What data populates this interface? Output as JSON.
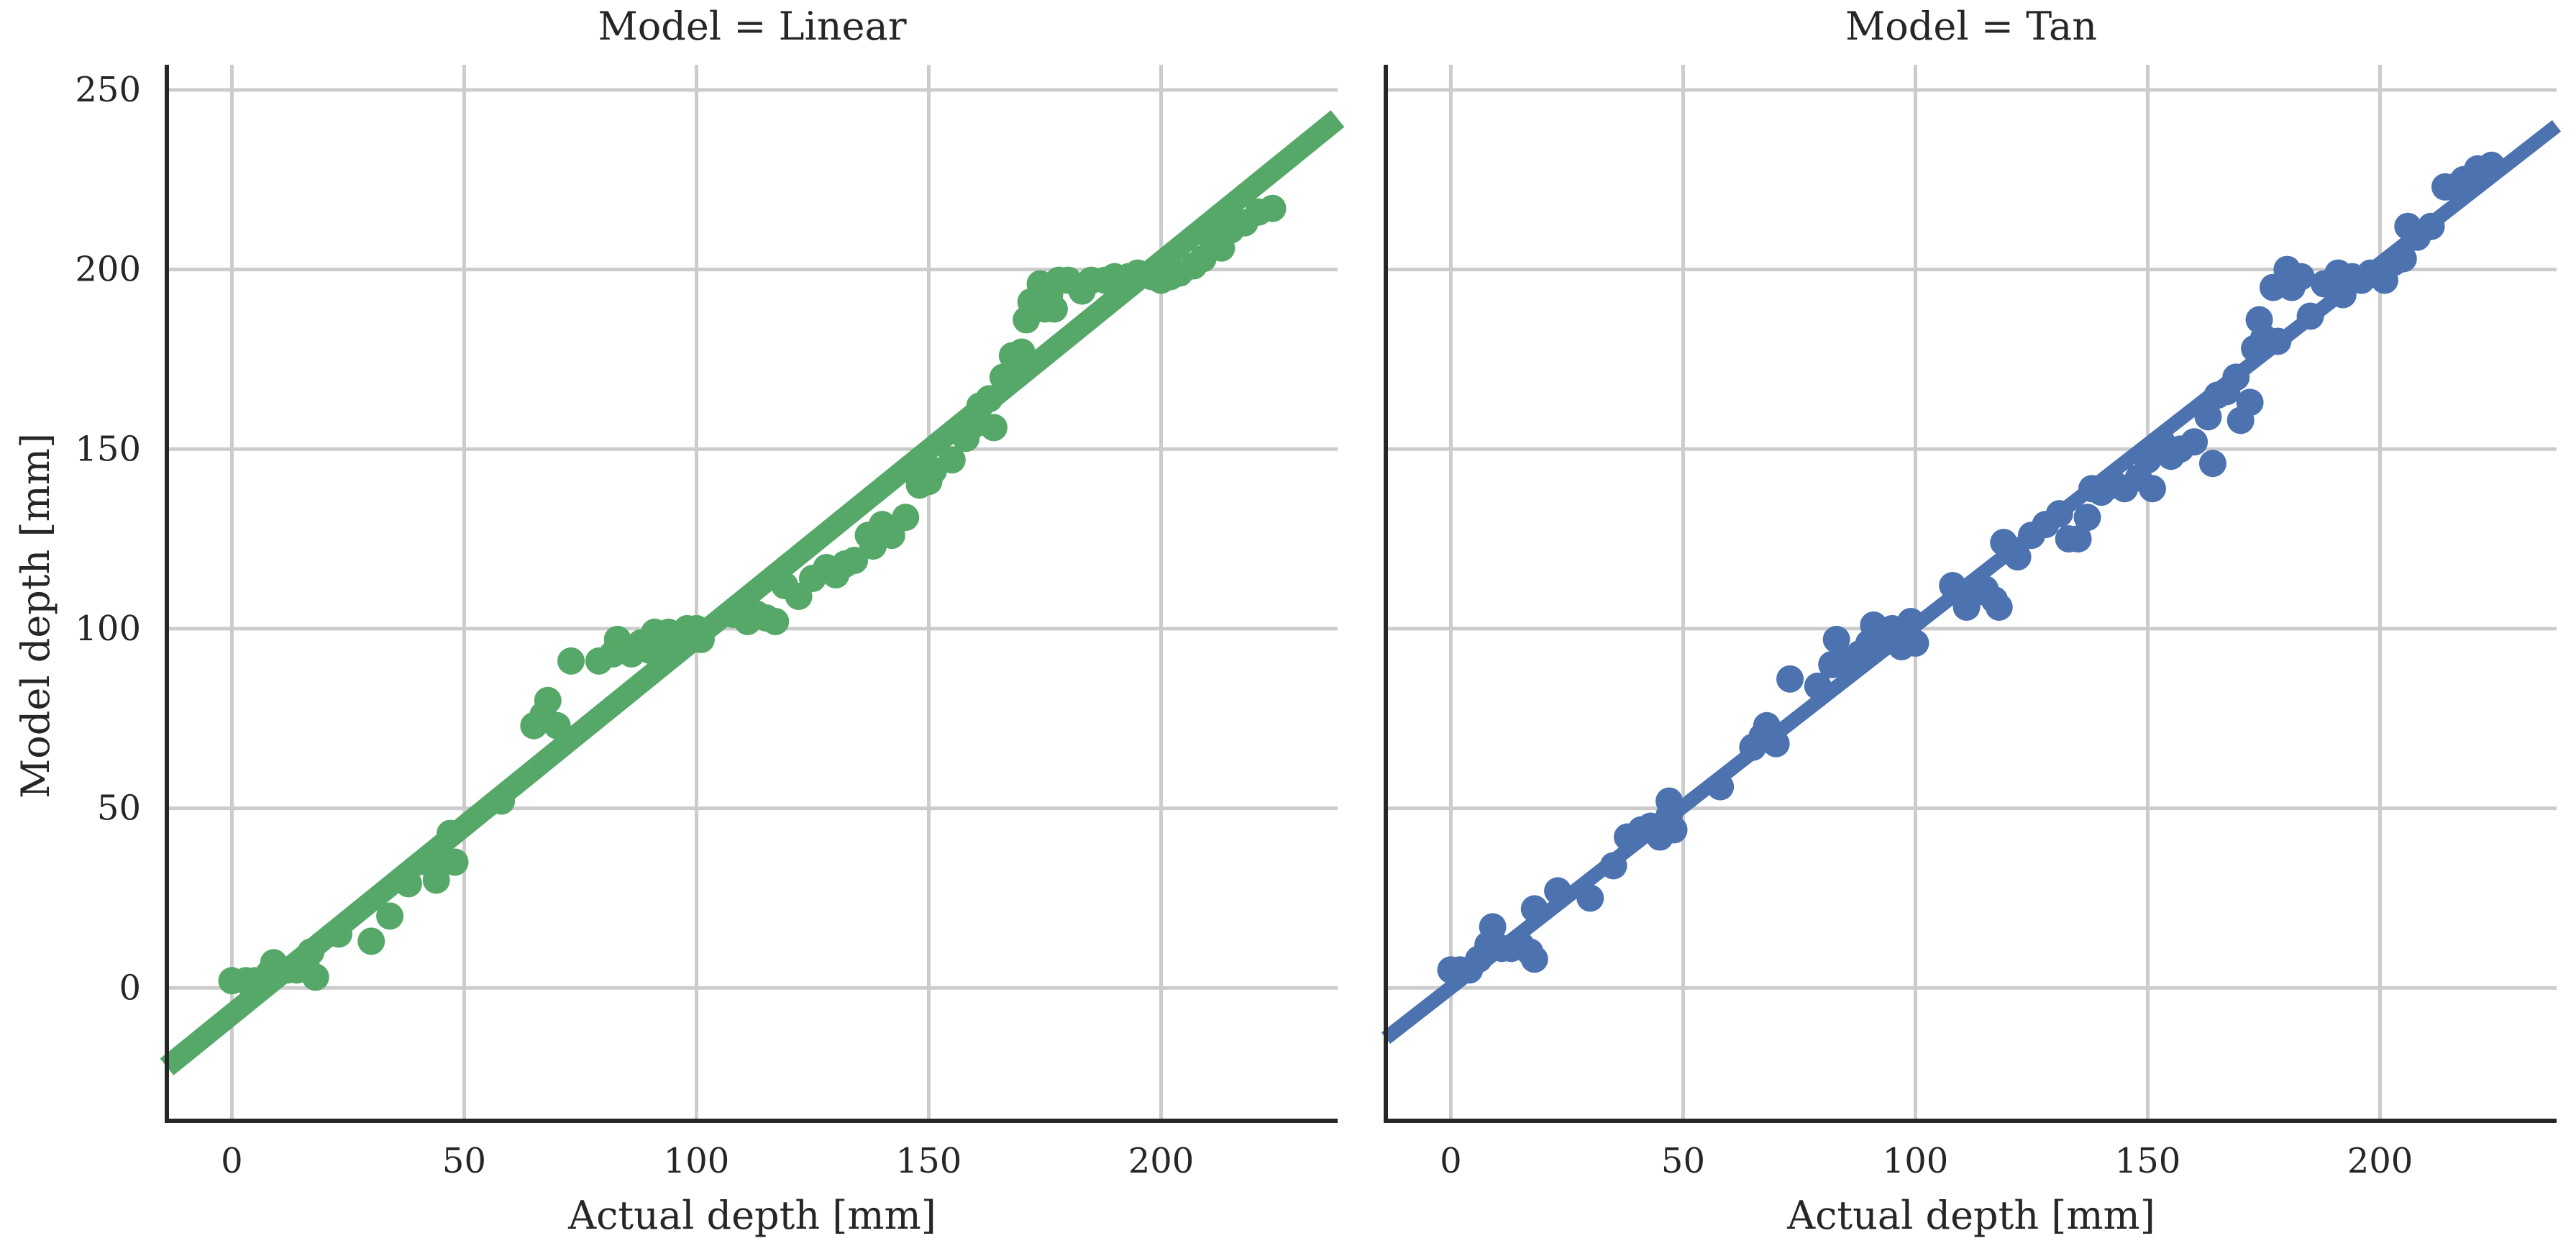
{
  "chart_data": [
    {
      "type": "scatter",
      "title": "Model = Linear",
      "xlabel": "Actual depth [mm]",
      "ylabel": "Model depth [mm]",
      "xlim": [
        -14,
        238
      ],
      "ylim": [
        -37,
        257
      ],
      "xticks": [
        0,
        50,
        100,
        150,
        200
      ],
      "yticks": [
        0,
        50,
        100,
        150,
        200,
        250
      ],
      "grid": true,
      "color": "#55a868",
      "fit_line": {
        "x": [
          -14,
          238
        ],
        "y": [
          -22,
          242
        ]
      },
      "points": [
        [
          0,
          2
        ],
        [
          3,
          2
        ],
        [
          5,
          2
        ],
        [
          8,
          4
        ],
        [
          9,
          7
        ],
        [
          10,
          5
        ],
        [
          12,
          5
        ],
        [
          14,
          5
        ],
        [
          16,
          6
        ],
        [
          17,
          10
        ],
        [
          18,
          3
        ],
        [
          23,
          15
        ],
        [
          30,
          13
        ],
        [
          34,
          20
        ],
        [
          38,
          29
        ],
        [
          42,
          35
        ],
        [
          44,
          30
        ],
        [
          45,
          36
        ],
        [
          47,
          43
        ],
        [
          48,
          35
        ],
        [
          58,
          52
        ],
        [
          65,
          73
        ],
        [
          67,
          76
        ],
        [
          68,
          80
        ],
        [
          70,
          73
        ],
        [
          73,
          91
        ],
        [
          79,
          91
        ],
        [
          82,
          93
        ],
        [
          83,
          97
        ],
        [
          86,
          93
        ],
        [
          88,
          96
        ],
        [
          90,
          94
        ],
        [
          91,
          99
        ],
        [
          93,
          97
        ],
        [
          94,
          99
        ],
        [
          96,
          98
        ],
        [
          98,
          100
        ],
        [
          100,
          100
        ],
        [
          101,
          97
        ],
        [
          108,
          104
        ],
        [
          111,
          102
        ],
        [
          113,
          104
        ],
        [
          115,
          103
        ],
        [
          117,
          102
        ],
        [
          119,
          112
        ],
        [
          122,
          109
        ],
        [
          125,
          114
        ],
        [
          128,
          117
        ],
        [
          130,
          115
        ],
        [
          132,
          118
        ],
        [
          134,
          119
        ],
        [
          137,
          126
        ],
        [
          138,
          123
        ],
        [
          140,
          129
        ],
        [
          142,
          126
        ],
        [
          145,
          131
        ],
        [
          148,
          140
        ],
        [
          150,
          141
        ],
        [
          151,
          144
        ],
        [
          155,
          147
        ],
        [
          158,
          153
        ],
        [
          160,
          157
        ],
        [
          161,
          162
        ],
        [
          163,
          164
        ],
        [
          164,
          156
        ],
        [
          166,
          170
        ],
        [
          168,
          176
        ],
        [
          170,
          177
        ],
        [
          171,
          186
        ],
        [
          172,
          191
        ],
        [
          174,
          196
        ],
        [
          175,
          189
        ],
        [
          176,
          193
        ],
        [
          177,
          189
        ],
        [
          178,
          197
        ],
        [
          180,
          197
        ],
        [
          183,
          194
        ],
        [
          185,
          197
        ],
        [
          188,
          197
        ],
        [
          190,
          198
        ],
        [
          193,
          198
        ],
        [
          195,
          199
        ],
        [
          198,
          198
        ],
        [
          200,
          197
        ],
        [
          202,
          198
        ],
        [
          204,
          199
        ],
        [
          207,
          201
        ],
        [
          209,
          203
        ],
        [
          211,
          208
        ],
        [
          213,
          206
        ],
        [
          215,
          211
        ],
        [
          218,
          213
        ],
        [
          221,
          216
        ],
        [
          224,
          217
        ]
      ]
    },
    {
      "type": "scatter",
      "title": "Model = Tan",
      "xlabel": "Actual depth [mm]",
      "ylabel": "",
      "xlim": [
        -14,
        238
      ],
      "ylim": [
        -37,
        257
      ],
      "xticks": [
        0,
        50,
        100,
        150,
        200
      ],
      "yticks": [
        0,
        50,
        100,
        150,
        200,
        250
      ],
      "grid": true,
      "color": "#4c72b0",
      "fit_line": {
        "x": [
          -14,
          238
        ],
        "y": [
          -14,
          240
        ]
      },
      "points": [
        [
          0,
          5
        ],
        [
          2,
          5
        ],
        [
          4,
          5
        ],
        [
          6,
          8
        ],
        [
          8,
          12
        ],
        [
          9,
          17
        ],
        [
          11,
          11
        ],
        [
          13,
          11
        ],
        [
          15,
          12
        ],
        [
          17,
          10
        ],
        [
          18,
          8
        ],
        [
          18,
          22
        ],
        [
          23,
          27
        ],
        [
          30,
          25
        ],
        [
          35,
          34
        ],
        [
          38,
          42
        ],
        [
          41,
          44
        ],
        [
          43,
          45
        ],
        [
          45,
          42
        ],
        [
          47,
          48
        ],
        [
          47,
          52
        ],
        [
          48,
          44
        ],
        [
          58,
          56
        ],
        [
          65,
          67
        ],
        [
          67,
          70
        ],
        [
          68,
          73
        ],
        [
          70,
          68
        ],
        [
          73,
          86
        ],
        [
          79,
          84
        ],
        [
          82,
          90
        ],
        [
          83,
          97
        ],
        [
          86,
          91
        ],
        [
          88,
          93
        ],
        [
          90,
          96
        ],
        [
          91,
          101
        ],
        [
          93,
          96
        ],
        [
          95,
          100
        ],
        [
          97,
          95
        ],
        [
          99,
          102
        ],
        [
          100,
          96
        ],
        [
          108,
          112
        ],
        [
          111,
          106
        ],
        [
          113,
          110
        ],
        [
          115,
          111
        ],
        [
          117,
          108
        ],
        [
          118,
          106
        ],
        [
          119,
          124
        ],
        [
          122,
          120
        ],
        [
          125,
          126
        ],
        [
          128,
          129
        ],
        [
          131,
          132
        ],
        [
          133,
          125
        ],
        [
          135,
          125
        ],
        [
          137,
          131
        ],
        [
          138,
          139
        ],
        [
          140,
          138
        ],
        [
          143,
          140
        ],
        [
          145,
          139
        ],
        [
          148,
          142
        ],
        [
          150,
          147
        ],
        [
          151,
          139
        ],
        [
          153,
          152
        ],
        [
          155,
          148
        ],
        [
          157,
          150
        ],
        [
          160,
          152
        ],
        [
          163,
          159
        ],
        [
          164,
          146
        ],
        [
          165,
          165
        ],
        [
          167,
          166
        ],
        [
          169,
          170
        ],
        [
          170,
          158
        ],
        [
          172,
          163
        ],
        [
          173,
          178
        ],
        [
          174,
          186
        ],
        [
          175,
          181
        ],
        [
          177,
          195
        ],
        [
          178,
          180
        ],
        [
          180,
          200
        ],
        [
          181,
          195
        ],
        [
          183,
          198
        ],
        [
          185,
          187
        ],
        [
          188,
          196
        ],
        [
          190,
          197
        ],
        [
          191,
          199
        ],
        [
          192,
          193
        ],
        [
          194,
          198
        ],
        [
          196,
          197
        ],
        [
          198,
          199
        ],
        [
          200,
          199
        ],
        [
          201,
          197
        ],
        [
          203,
          202
        ],
        [
          205,
          203
        ],
        [
          206,
          212
        ],
        [
          208,
          209
        ],
        [
          211,
          212
        ],
        [
          214,
          223
        ],
        [
          216,
          223
        ],
        [
          218,
          225
        ],
        [
          221,
          228
        ],
        [
          224,
          229
        ]
      ]
    }
  ]
}
